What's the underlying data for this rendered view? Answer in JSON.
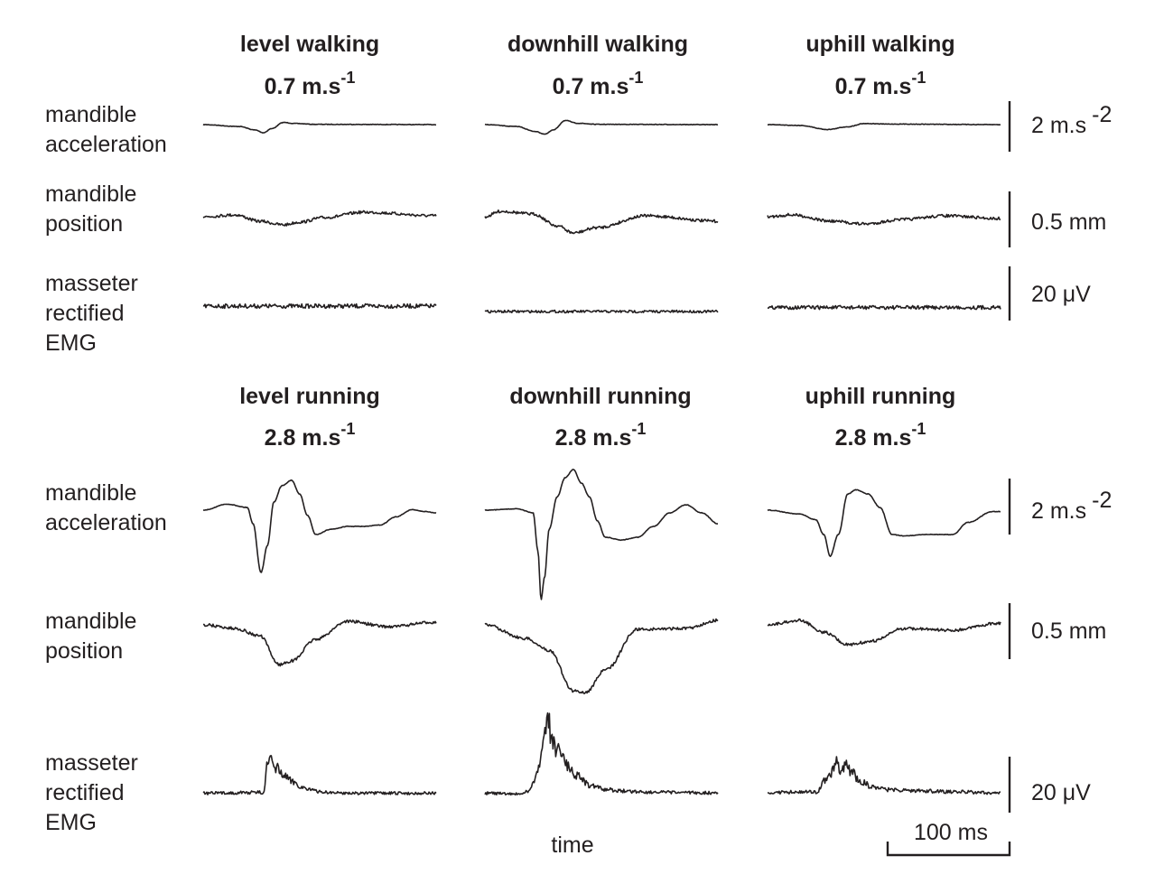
{
  "conditions": [
    {
      "title": "level walking",
      "speed": "0.7 m.s",
      "exp": "-1"
    },
    {
      "title": "downhill walking",
      "speed": "0.7 m.s",
      "exp": "-1"
    },
    {
      "title": "uphill walking",
      "speed": "0.7 m.s",
      "exp": "-1"
    },
    {
      "title": "level running",
      "speed": "2.8 m.s",
      "exp": "-1"
    },
    {
      "title": "downhill running",
      "speed": "2.8 m.s",
      "exp": "-1"
    },
    {
      "title": "uphill running",
      "speed": "2.8 m.s",
      "exp": "-1"
    }
  ],
  "row_labels": {
    "acceleration": [
      "mandible",
      "acceleration"
    ],
    "position": [
      "mandible",
      "position"
    ],
    "emg": [
      "masseter",
      "rectified",
      "EMG"
    ]
  },
  "scale_bars": {
    "acceleration": {
      "value": "2 m.s",
      "exp": "-2"
    },
    "position": {
      "value": "0.5 mm"
    },
    "emg": {
      "value": "20 μV"
    },
    "time": {
      "value": "100 ms"
    }
  },
  "xlabel": "time",
  "chart_data": {
    "type": "line",
    "units": {
      "acceleration": "m.s-2",
      "position": "mm",
      "emg": "μV"
    },
    "time_range_ms": [
      0,
      290
    ],
    "panels": [
      {
        "condition": "level walking",
        "acceleration": {
          "t": [
            0,
            45,
            65,
            75,
            85,
            100,
            115,
            140,
            290
          ],
          "v": [
            0,
            -0.07,
            -0.2,
            -0.3,
            -0.15,
            0.08,
            0.04,
            0.01,
            0
          ]
        },
        "position": {
          "t": [
            0,
            40,
            70,
            100,
            120,
            150,
            200,
            290
          ],
          "v": [
            0,
            0.02,
            -0.05,
            -0.09,
            -0.06,
            -0.01,
            0.05,
            0.01
          ]
        },
        "emg": {
          "t": [
            0,
            290
          ],
          "v": [
            2,
            2
          ]
        }
      },
      {
        "condition": "downhill walking",
        "acceleration": {
          "t": [
            0,
            40,
            62,
            75,
            85,
            100,
            115,
            140,
            290
          ],
          "v": [
            0,
            -0.07,
            -0.25,
            -0.35,
            -0.2,
            0.15,
            0.05,
            0.01,
            0
          ]
        },
        "position": {
          "t": [
            0,
            20,
            60,
            90,
            110,
            140,
            200,
            290
          ],
          "v": [
            0,
            0.06,
            0.03,
            -0.1,
            -0.18,
            -0.12,
            0.01,
            -0.05
          ]
        },
        "emg": {
          "t": [
            0,
            290
          ],
          "v": [
            0,
            0
          ]
        }
      },
      {
        "condition": "uphill walking",
        "acceleration": {
          "t": [
            0,
            40,
            75,
            100,
            120,
            150,
            290
          ],
          "v": [
            0,
            -0.03,
            -0.18,
            -0.08,
            0.04,
            0.02,
            0
          ]
        },
        "position": {
          "t": [
            0,
            30,
            80,
            120,
            170,
            220,
            290
          ],
          "v": [
            0,
            0.02,
            -0.05,
            -0.08,
            -0.03,
            0.01,
            -0.02
          ]
        },
        "emg": {
          "t": [
            0,
            290
          ],
          "v": [
            1.5,
            1.5
          ]
        }
      },
      {
        "condition": "level running",
        "acceleration": {
          "t": [
            0,
            30,
            55,
            62,
            72,
            80,
            88,
            98,
            110,
            120,
            130,
            140,
            160,
            180,
            200,
            220,
            240,
            260,
            275,
            290
          ],
          "v": [
            0,
            0.22,
            0.1,
            -0.5,
            -2.3,
            -1.3,
            0.3,
            0.9,
            1.1,
            0.6,
            -0.2,
            -0.9,
            -0.7,
            -0.6,
            -0.6,
            -0.55,
            -0.25,
            0.02,
            -0.05,
            -0.1
          ]
        },
        "position": {
          "t": [
            0,
            40,
            70,
            95,
            110,
            140,
            180,
            230,
            290
          ],
          "v": [
            0,
            -0.04,
            -0.12,
            -0.44,
            -0.4,
            -0.16,
            0.04,
            -0.02,
            0.03
          ]
        },
        "emg": {
          "t": [
            0,
            75,
            80,
            83,
            88,
            92,
            96,
            100,
            110,
            125,
            145,
            170,
            200,
            240,
            290
          ],
          "v": [
            0.5,
            0.8,
            11,
            13,
            9.5,
            10,
            8,
            7,
            5,
            2.5,
            1,
            0.6,
            0.5,
            0.5,
            0.5
          ]
        }
      },
      {
        "condition": "downhill running",
        "acceleration": {
          "t": [
            0,
            40,
            60,
            66,
            70,
            74,
            80,
            90,
            100,
            110,
            120,
            130,
            140,
            150,
            170,
            190,
            210,
            230,
            250,
            270,
            290
          ],
          "v": [
            0,
            0.05,
            -0.1,
            -1.5,
            -3.3,
            -2.5,
            -0.7,
            0.5,
            1.2,
            1.5,
            1.0,
            0.5,
            -0.4,
            -1.0,
            -1.1,
            -1.0,
            -0.6,
            -0.1,
            0.2,
            -0.1,
            -0.5
          ]
        },
        "position": {
          "t": [
            0,
            50,
            80,
            110,
            125,
            150,
            190,
            250,
            290
          ],
          "v": [
            0,
            -0.15,
            -0.28,
            -0.73,
            -0.75,
            -0.5,
            -0.05,
            -0.04,
            0.05
          ]
        },
        "emg": {
          "t": [
            0,
            40,
            55,
            60,
            65,
            70,
            75,
            78,
            83,
            88,
            92,
            97,
            105,
            115,
            130,
            150,
            180,
            220,
            290
          ],
          "v": [
            0.5,
            0.2,
            1,
            4,
            9,
            14,
            24,
            29,
            21,
            17,
            18,
            13,
            10,
            7,
            3.5,
            1.8,
            1.2,
            0.8,
            0.6
          ]
        }
      },
      {
        "condition": "uphill running",
        "acceleration": {
          "t": [
            0,
            40,
            60,
            70,
            78,
            88,
            100,
            110,
            125,
            140,
            155,
            170,
            200,
            230,
            250,
            280,
            290
          ],
          "v": [
            0,
            -0.14,
            -0.35,
            -0.9,
            -1.7,
            -0.9,
            0.6,
            0.75,
            0.6,
            0.1,
            -0.9,
            -0.95,
            -0.9,
            -0.9,
            -0.45,
            -0.05,
            -0.05
          ]
        },
        "position": {
          "t": [
            0,
            40,
            70,
            100,
            130,
            170,
            230,
            290
          ],
          "v": [
            0,
            0.05,
            -0.08,
            -0.22,
            -0.18,
            -0.04,
            -0.06,
            0.02
          ]
        },
        "emg": {
          "t": [
            0,
            60,
            75,
            80,
            85,
            90,
            97,
            105,
            115,
            130,
            150,
            180,
            230,
            290
          ],
          "v": [
            0.8,
            1,
            6,
            8,
            12,
            9,
            11,
            8,
            5,
            3,
            1.8,
            1.5,
            1,
            0.6
          ]
        }
      }
    ]
  }
}
